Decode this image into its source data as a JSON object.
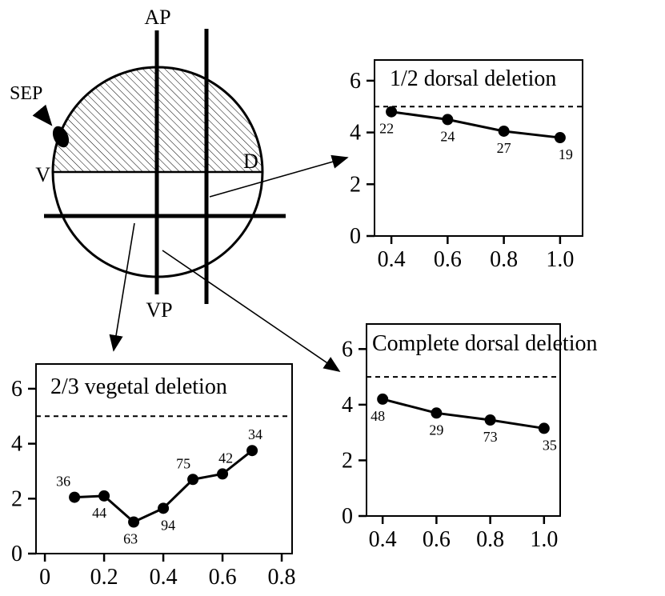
{
  "figure": {
    "colors": {
      "ink": "#000000",
      "background": "#ffffff"
    },
    "diagram": {
      "animal_pole_label": "AP",
      "vegetal_pole_label": "VP",
      "sep_label": "SEP",
      "ventral_label": "V",
      "dorsal_label": "D"
    }
  },
  "chart_data": [
    {
      "id": "half-dorsal-deletion",
      "type": "line",
      "title": "1/2 dorsal deletion",
      "x": [
        0.4,
        0.6,
        0.8,
        1.0
      ],
      "values": [
        4.8,
        4.5,
        4.05,
        3.8
      ],
      "point_labels": [
        "22",
        "24",
        "27",
        "19"
      ],
      "label_pos": [
        "below",
        "below",
        "below",
        "below"
      ],
      "label_dx": [
        -6,
        0,
        0,
        7
      ],
      "xticks": [
        0.4,
        0.6,
        0.8,
        1.0
      ],
      "yticks": [
        0,
        2,
        4,
        6
      ],
      "xlim": [
        0.34,
        1.08
      ],
      "ylim": [
        0,
        6.8
      ],
      "dashed_line_y": 5,
      "grid": false,
      "legend": false
    },
    {
      "id": "two-thirds-vegetal-deletion",
      "type": "line",
      "title": "2/3 vegetal deletion",
      "x": [
        0.1,
        0.2,
        0.3,
        0.4,
        0.5,
        0.6,
        0.7
      ],
      "values": [
        2.05,
        2.1,
        1.15,
        1.65,
        2.7,
        2.9,
        3.75
      ],
      "point_labels": [
        "36",
        "44",
        "63",
        "94",
        "75",
        "42",
        "34"
      ],
      "label_pos": [
        "above",
        "below",
        "below",
        "below",
        "above",
        "above",
        "above"
      ],
      "label_dx": [
        -14,
        -6,
        -4,
        6,
        -12,
        4,
        4
      ],
      "xticks": [
        0,
        0.2,
        0.4,
        0.6,
        0.8
      ],
      "yticks": [
        0,
        2,
        4,
        6
      ],
      "xlim": [
        -0.03,
        0.835
      ],
      "ylim": [
        0,
        6.9
      ],
      "dashed_line_y": 5,
      "grid": false,
      "legend": false
    },
    {
      "id": "complete-dorsal-deletion",
      "type": "line",
      "title": "Complete dorsal deletion",
      "x": [
        0.4,
        0.6,
        0.8,
        1.0
      ],
      "values": [
        4.2,
        3.7,
        3.45,
        3.15
      ],
      "point_labels": [
        "48",
        "29",
        "73",
        "35"
      ],
      "label_pos": [
        "below",
        "below",
        "below",
        "below"
      ],
      "label_dx": [
        -6,
        0,
        0,
        7
      ],
      "xticks": [
        0.4,
        0.6,
        0.8,
        1.0
      ],
      "yticks": [
        0,
        2,
        4,
        6
      ],
      "xlim": [
        0.34,
        1.06
      ],
      "ylim": [
        0,
        6.9
      ],
      "dashed_line_y": 5,
      "grid": false,
      "legend": false
    }
  ]
}
